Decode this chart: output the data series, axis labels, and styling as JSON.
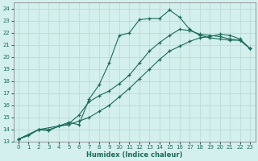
{
  "xlabel": "Humidex (Indice chaleur)",
  "bg_color": "#d4f0ee",
  "grid_color": "#c0deda",
  "line_color": "#1a6b5a",
  "xlim": [
    -0.5,
    23.5
  ],
  "ylim": [
    13,
    24.5
  ],
  "xticks": [
    0,
    1,
    2,
    3,
    4,
    5,
    6,
    7,
    8,
    9,
    10,
    11,
    12,
    13,
    14,
    15,
    16,
    17,
    18,
    19,
    20,
    21,
    22,
    23
  ],
  "yticks": [
    13,
    14,
    15,
    16,
    17,
    18,
    19,
    20,
    21,
    22,
    23,
    24
  ],
  "line1_x": [
    0,
    1,
    2,
    3,
    4,
    5,
    6,
    7,
    8,
    9,
    10,
    11,
    12,
    13,
    14,
    15,
    16,
    17,
    18,
    19,
    20,
    21,
    22,
    23
  ],
  "line1_y": [
    13.2,
    13.5,
    14.0,
    13.9,
    14.3,
    14.6,
    14.4,
    16.5,
    17.7,
    19.5,
    21.8,
    22.0,
    23.1,
    23.2,
    23.2,
    23.9,
    23.3,
    22.3,
    21.8,
    21.6,
    21.5,
    21.4,
    21.4,
    20.7
  ],
  "line2_x": [
    0,
    2,
    3,
    5,
    6,
    7,
    8,
    9,
    10,
    11,
    12,
    13,
    14,
    15,
    16,
    17,
    18,
    19,
    20,
    21,
    22,
    23
  ],
  "line2_y": [
    13.2,
    14.0,
    14.0,
    14.5,
    15.2,
    16.3,
    16.8,
    17.2,
    17.8,
    18.5,
    19.5,
    20.5,
    21.2,
    21.8,
    22.3,
    22.2,
    21.9,
    21.8,
    21.7,
    21.5,
    21.4,
    20.7
  ],
  "line3_x": [
    0,
    2,
    4,
    5,
    6,
    7,
    8,
    9,
    10,
    11,
    12,
    13,
    14,
    15,
    16,
    17,
    18,
    19,
    20,
    21,
    22,
    23
  ],
  "line3_y": [
    13.2,
    14.0,
    14.3,
    14.4,
    14.7,
    15.0,
    15.5,
    16.0,
    16.7,
    17.4,
    18.2,
    19.0,
    19.8,
    20.5,
    20.9,
    21.3,
    21.6,
    21.7,
    21.9,
    21.8,
    21.5,
    20.7
  ]
}
